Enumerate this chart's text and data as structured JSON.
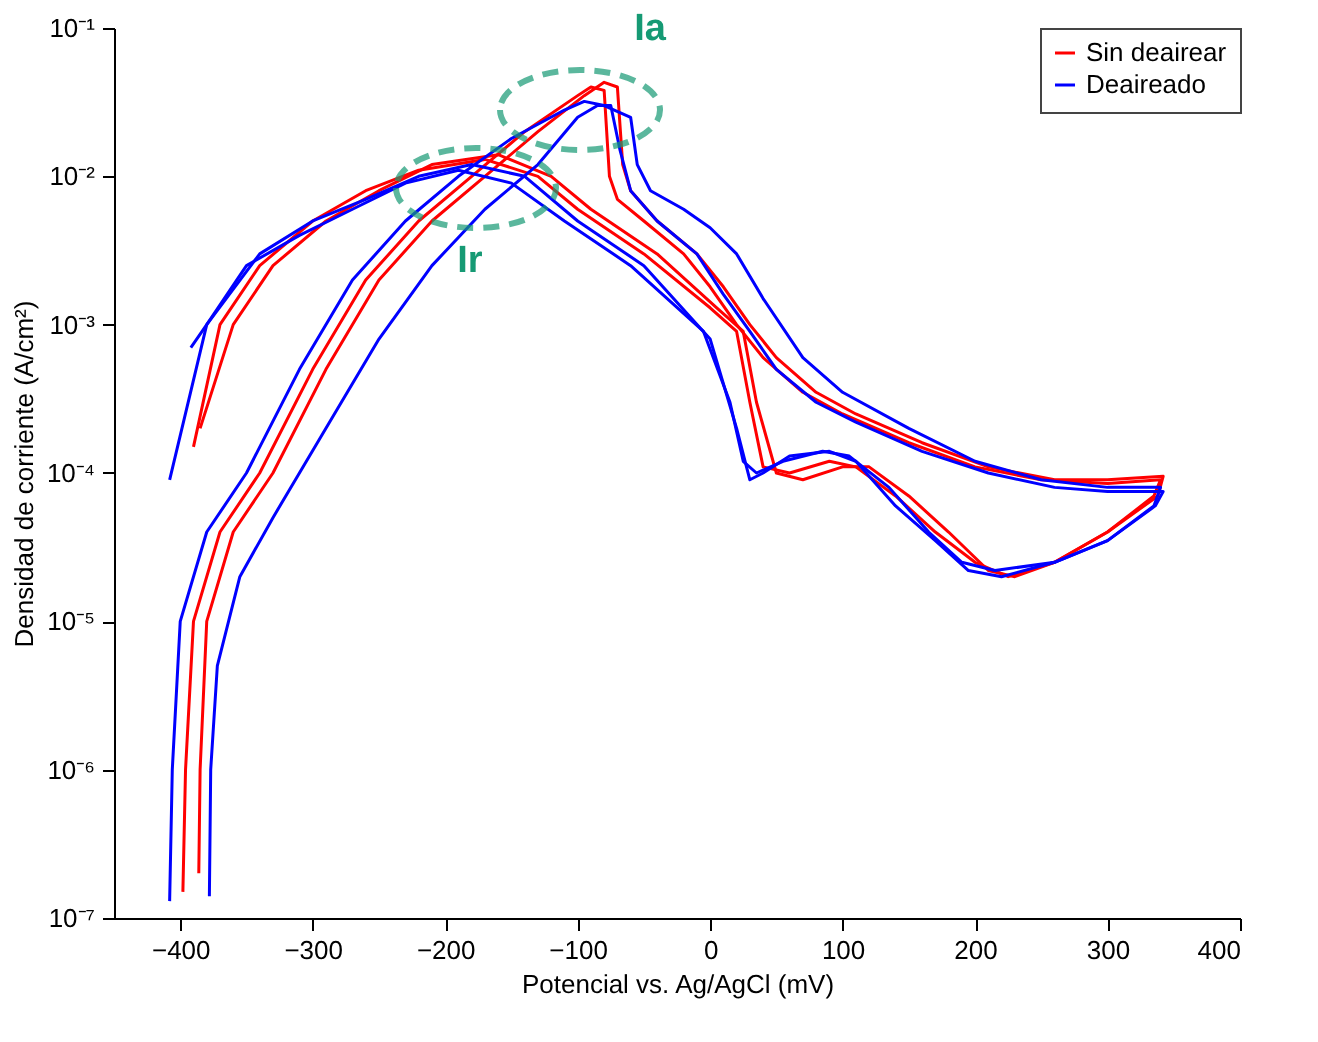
{
  "chart_data": {
    "type": "line",
    "xlabel": "Potencial vs. Ag/AgCl (mV)",
    "ylabel": "Densidad de corriente (A/cm²)",
    "xlim": [
      -450,
      400
    ],
    "xticks": [
      -400,
      -300,
      -200,
      -100,
      0,
      100,
      200,
      300,
      400
    ],
    "ylim": [
      1e-07,
      0.1
    ],
    "log": true,
    "yticks": [
      {
        "value": 1e-07,
        "label": "10⁻⁷"
      },
      {
        "value": 1e-06,
        "label": "10⁻⁶"
      },
      {
        "value": 1e-05,
        "label": "10⁻⁵"
      },
      {
        "value": 0.0001,
        "label": "10⁻⁴"
      },
      {
        "value": 0.001,
        "label": "10⁻³"
      },
      {
        "value": 0.01,
        "label": "10⁻²"
      },
      {
        "value": 0.1,
        "label": "10⁻¹"
      }
    ],
    "grid": false,
    "legend": "top right",
    "line_style": "solid",
    "marker": "none",
    "annotations": [
      "Ia",
      "Ir"
    ],
    "series": [
      {
        "name": "Sin deairear",
        "color": "#ff0000",
        "x": [
          -398,
          -396,
          -390,
          -370,
          -340,
          -300,
          -260,
          -220,
          -180,
          -140,
          -100,
          -90,
          -80,
          -76,
          -70,
          -50,
          -20,
          0,
          20,
          40,
          70,
          100,
          150,
          200,
          250,
          300,
          340,
          335,
          300,
          260,
          225,
          200,
          170,
          140,
          110,
          90,
          60,
          40,
          30,
          20,
          0,
          -50,
          -100,
          -130,
          -170,
          -220,
          -260,
          -300,
          -340,
          -370,
          -390
        ],
        "values": [
          1.5e-07,
          1e-06,
          1e-05,
          4e-05,
          0.0001,
          0.0005,
          0.002,
          0.005,
          0.01,
          0.02,
          0.035,
          0.04,
          0.038,
          0.01,
          0.007,
          0.005,
          0.003,
          0.0018,
          0.001,
          0.0006,
          0.00035,
          0.00025,
          0.00016,
          0.00011,
          9e-05,
          8.5e-05,
          9e-05,
          7e-05,
          4e-05,
          2.5e-05,
          2e-05,
          2.5e-05,
          4e-05,
          7e-05,
          0.00011,
          0.00012,
          0.0001,
          0.00011,
          0.0003,
          0.0009,
          0.0013,
          0.003,
          0.006,
          0.01,
          0.013,
          0.011,
          0.008,
          0.005,
          0.0025,
          0.001,
          0.00015
        ]
      },
      {
        "color": "#ff0000",
        "x": [
          -386,
          -385,
          -380,
          -360,
          -330,
          -290,
          -250,
          -210,
          -170,
          -130,
          -95,
          -80,
          -70,
          -66,
          -60,
          -40,
          -10,
          10,
          30,
          50,
          80,
          110,
          160,
          210,
          260,
          300,
          342,
          338,
          300,
          260,
          230,
          210,
          180,
          150,
          120,
          100,
          70,
          50,
          35,
          25,
          5,
          -40,
          -90,
          -120,
          -160,
          -210,
          -250,
          -290,
          -330,
          -360,
          -385
        ],
        "values": [
          2e-07,
          1e-06,
          1e-05,
          4e-05,
          0.0001,
          0.0005,
          0.002,
          0.005,
          0.01,
          0.02,
          0.035,
          0.043,
          0.04,
          0.012,
          0.008,
          0.005,
          0.003,
          0.0018,
          0.001,
          0.0006,
          0.00035,
          0.00025,
          0.00016,
          0.00011,
          9e-05,
          9e-05,
          9.5e-05,
          7e-05,
          4e-05,
          2.5e-05,
          2e-05,
          2.2e-05,
          4e-05,
          7e-05,
          0.00011,
          0.00011,
          9e-05,
          0.0001,
          0.0003,
          0.0009,
          0.0013,
          0.003,
          0.006,
          0.01,
          0.014,
          0.012,
          0.008,
          0.005,
          0.0025,
          0.001,
          0.0002
        ]
      },
      {
        "name": "Deaireado",
        "color": "#0000ff",
        "x": [
          -408,
          -406,
          -400,
          -380,
          -350,
          -310,
          -270,
          -230,
          -190,
          -150,
          -110,
          -95,
          -80,
          -60,
          -55,
          -45,
          -20,
          0,
          20,
          40,
          70,
          100,
          150,
          200,
          250,
          300,
          340,
          335,
          300,
          260,
          220,
          195,
          170,
          140,
          110,
          90,
          60,
          40,
          30,
          20,
          0,
          -50,
          -100,
          -140,
          -180,
          -220,
          -260,
          -300,
          -340,
          -380,
          -408
        ],
        "values": [
          1.3e-07,
          1e-06,
          1e-05,
          4e-05,
          0.0001,
          0.0005,
          0.002,
          0.005,
          0.01,
          0.018,
          0.028,
          0.032,
          0.03,
          0.025,
          0.012,
          0.008,
          0.006,
          0.0045,
          0.003,
          0.0015,
          0.0006,
          0.00035,
          0.0002,
          0.00012,
          9e-05,
          8e-05,
          8e-05,
          6e-05,
          3.5e-05,
          2.5e-05,
          2e-05,
          2.2e-05,
          3.5e-05,
          6e-05,
          0.00012,
          0.00014,
          0.00013,
          0.0001,
          9e-05,
          0.0002,
          0.0008,
          0.0025,
          0.005,
          0.01,
          0.012,
          0.01,
          0.007,
          0.005,
          0.003,
          0.001,
          9e-05
        ]
      },
      {
        "color": "#0000ff",
        "x": [
          -378,
          -377,
          -372,
          -355,
          -330,
          -290,
          -250,
          -210,
          -170,
          -130,
          -100,
          -85,
          -75,
          -68,
          -60,
          -40,
          -10,
          10,
          30,
          50,
          80,
          110,
          160,
          210,
          260,
          300,
          342,
          336,
          300,
          260,
          215,
          190,
          165,
          135,
          105,
          85,
          55,
          35,
          25,
          15,
          -5,
          -60,
          -110,
          -150,
          -190,
          -230,
          -270,
          -310,
          -350,
          -380,
          -392
        ],
        "values": [
          1.4e-07,
          1e-06,
          5e-06,
          2e-05,
          5e-05,
          0.0002,
          0.0008,
          0.0025,
          0.006,
          0.012,
          0.025,
          0.03,
          0.03,
          0.015,
          0.008,
          0.005,
          0.003,
          0.0016,
          0.0009,
          0.0005,
          0.0003,
          0.00022,
          0.00014,
          0.0001,
          8e-05,
          7.5e-05,
          7.5e-05,
          6e-05,
          3.5e-05,
          2.5e-05,
          2.2e-05,
          2.5e-05,
          4e-05,
          8e-05,
          0.00013,
          0.00014,
          0.00012,
          0.0001,
          0.00012,
          0.0003,
          0.0009,
          0.0025,
          0.005,
          0.009,
          0.011,
          0.009,
          0.006,
          0.004,
          0.0025,
          0.001,
          0.0007
        ]
      }
    ]
  }
}
